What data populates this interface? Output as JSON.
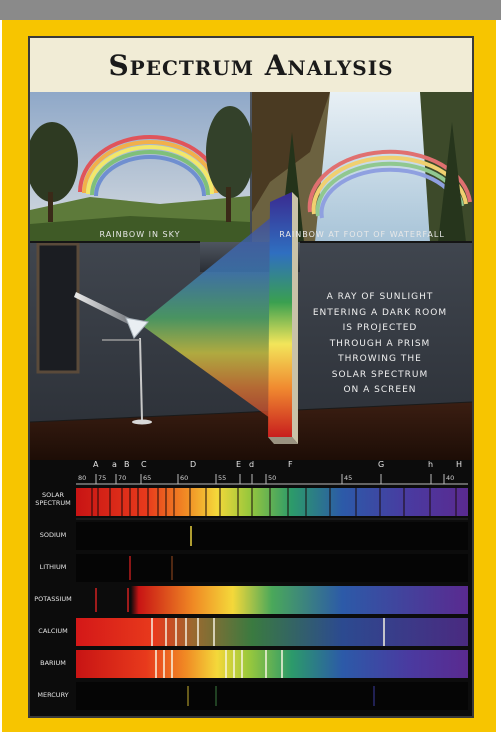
{
  "title": "Spectrum Analysis",
  "captions": {
    "rainbow_sky": "RAINBOW IN SKY",
    "rainbow_waterfall": "RAINBOW AT FOOT OF WATERFALL"
  },
  "description": [
    "A RAY OF SUNLIGHT",
    "ENTERING A DARK ROOM",
    "IS PROJECTED",
    "THROUGH A PRISM",
    "THROWING THE",
    "SOLAR SPECTRUM",
    "ON A SCREEN"
  ],
  "scale": {
    "fraunhofer": [
      "A",
      "a",
      "B",
      "C",
      "D",
      "E",
      "d",
      "F",
      "G",
      "h",
      "H"
    ],
    "wavelengths": [
      "80",
      "75",
      "70",
      "65",
      "60",
      "55",
      "50",
      "45",
      "40"
    ]
  },
  "spectra": [
    {
      "label": "SOLAR SPECTRUM"
    },
    {
      "label": "SODIUM"
    },
    {
      "label": "LITHIUM"
    },
    {
      "label": "POTASSIUM"
    },
    {
      "label": "CALCIUM"
    },
    {
      "label": "BARIUM"
    },
    {
      "label": "MERCURY"
    }
  ],
  "colors": {
    "frame": "#f7c500",
    "title_bg": "#f1ecd6",
    "panel_bg": "#0c0c0c"
  }
}
